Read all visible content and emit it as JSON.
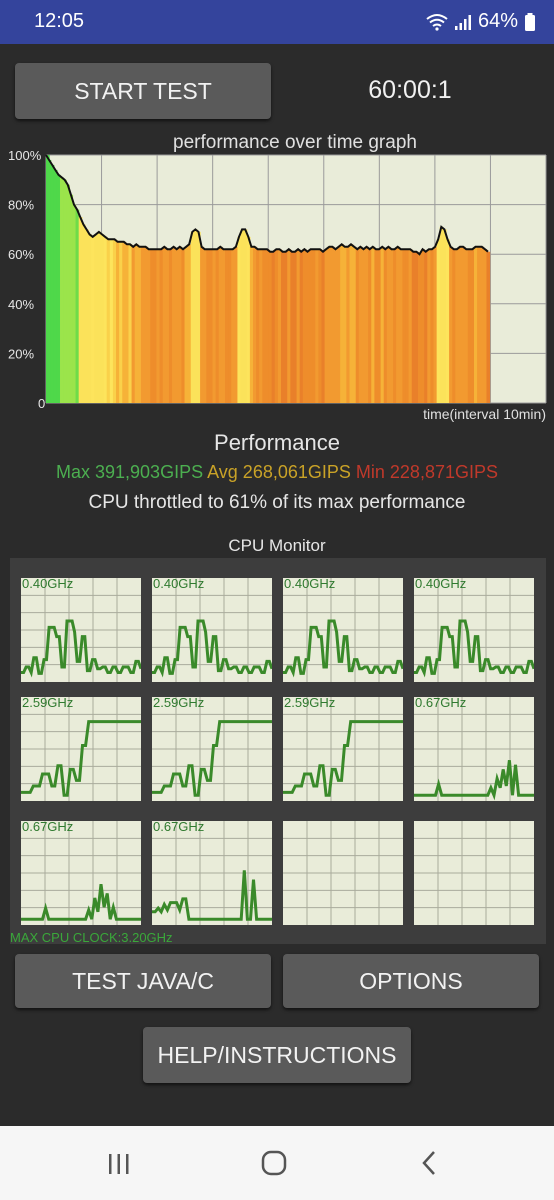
{
  "status": {
    "time": "12:05",
    "battery": "64%"
  },
  "controls": {
    "start_label": "START TEST",
    "timer": "60:00:1",
    "java_c_label": "TEST JAVA/C",
    "options_label": "OPTIONS",
    "help_label": "HELP/INSTRUCTIONS"
  },
  "chart_data": {
    "type": "line",
    "title": "performance over time graph",
    "xlabel": "time(interval 10min)",
    "ylabel": "",
    "ylim": [
      0,
      100
    ],
    "y_ticks": [
      "100%",
      "80%",
      "60%",
      "40%",
      "20%",
      "0"
    ],
    "grid": true,
    "series": [
      {
        "values": [
          100,
          98,
          96,
          94,
          92,
          91,
          90,
          88,
          84,
          80,
          78,
          75,
          72,
          70,
          68,
          67,
          68,
          69,
          68,
          67,
          66,
          66,
          66,
          65,
          65,
          65,
          64,
          64,
          63,
          64,
          63,
          63,
          63,
          62,
          62,
          62,
          62,
          62,
          63,
          62,
          62,
          63,
          62,
          63,
          62,
          63,
          64,
          69,
          70,
          69,
          63,
          62,
          62,
          62,
          62,
          62,
          63,
          62,
          62,
          62,
          62,
          63,
          67,
          70,
          70,
          67,
          63,
          63,
          62,
          62,
          62,
          62,
          61,
          61,
          62,
          62,
          61,
          61,
          62,
          61,
          61,
          62,
          61,
          62,
          61,
          62,
          62,
          62,
          62,
          61,
          62,
          63,
          63,
          62,
          63,
          64,
          63,
          63,
          64,
          63,
          62,
          63,
          62,
          63,
          62,
          63,
          62,
          62,
          63,
          62,
          63,
          62,
          62,
          63,
          62,
          62,
          62,
          62,
          61,
          61,
          60,
          62,
          61,
          62,
          62,
          63,
          66,
          71,
          70,
          66,
          63,
          62,
          62,
          63,
          63,
          62,
          62,
          62,
          63,
          63,
          63,
          62,
          61
        ]
      }
    ]
  },
  "summary": {
    "heading": "Performance",
    "max": "Max 391,903GIPS",
    "avg": "Avg 268,061GIPS",
    "min": "Min 228,871GIPS",
    "throttle": "CPU throttled to 61% of its max performance",
    "colors": {
      "max": "#4caf50",
      "avg": "#c9a227",
      "min": "#c0392b"
    }
  },
  "cpu_monitor": {
    "title": "CPU Monitor",
    "max_clock": "MAX CPU CLOCK:3.20GHz",
    "cores": [
      {
        "freq": "0.40GHz",
        "values": [
          0.06,
          0.06,
          0.12,
          0.12,
          0.06,
          0.22,
          0.22,
          0.05,
          0.05,
          0.2,
          0.2,
          0.55,
          0.55,
          0.55,
          0.45,
          0.45,
          0.12,
          0.12,
          0.62,
          0.62,
          0.62,
          0.5,
          0.18,
          0.18,
          0.45,
          0.45,
          0.08,
          0.08,
          0.2,
          0.2,
          0.1,
          0.1,
          0.12,
          0.12,
          0.06,
          0.06,
          0.12,
          0.12,
          0.06,
          0.06,
          0.12,
          0.12,
          0.12,
          0.06,
          0.06,
          0.18,
          0.18,
          0.1
        ]
      },
      {
        "freq": "0.40GHz",
        "values": [
          0.06,
          0.06,
          0.12,
          0.12,
          0.06,
          0.22,
          0.22,
          0.05,
          0.05,
          0.2,
          0.2,
          0.55,
          0.55,
          0.55,
          0.45,
          0.45,
          0.12,
          0.12,
          0.62,
          0.62,
          0.62,
          0.5,
          0.18,
          0.18,
          0.45,
          0.45,
          0.08,
          0.08,
          0.2,
          0.2,
          0.1,
          0.1,
          0.12,
          0.12,
          0.06,
          0.06,
          0.12,
          0.12,
          0.06,
          0.06,
          0.12,
          0.12,
          0.12,
          0.06,
          0.06,
          0.18,
          0.18,
          0.1
        ]
      },
      {
        "freq": "0.40GHz",
        "values": [
          0.06,
          0.06,
          0.12,
          0.12,
          0.06,
          0.22,
          0.22,
          0.05,
          0.05,
          0.2,
          0.2,
          0.55,
          0.55,
          0.55,
          0.45,
          0.45,
          0.12,
          0.12,
          0.62,
          0.62,
          0.62,
          0.5,
          0.18,
          0.18,
          0.45,
          0.45,
          0.08,
          0.08,
          0.2,
          0.2,
          0.1,
          0.1,
          0.12,
          0.12,
          0.06,
          0.06,
          0.12,
          0.12,
          0.06,
          0.06,
          0.12,
          0.12,
          0.12,
          0.06,
          0.06,
          0.18,
          0.18,
          0.1
        ]
      },
      {
        "freq": "0.40GHz",
        "values": [
          0.06,
          0.06,
          0.12,
          0.12,
          0.06,
          0.22,
          0.22,
          0.05,
          0.05,
          0.2,
          0.2,
          0.55,
          0.55,
          0.55,
          0.45,
          0.45,
          0.12,
          0.12,
          0.62,
          0.62,
          0.62,
          0.5,
          0.18,
          0.18,
          0.45,
          0.45,
          0.08,
          0.08,
          0.2,
          0.2,
          0.1,
          0.1,
          0.12,
          0.12,
          0.06,
          0.06,
          0.12,
          0.12,
          0.06,
          0.06,
          0.12,
          0.12,
          0.12,
          0.06,
          0.06,
          0.18,
          0.18,
          0.1
        ]
      },
      {
        "freq": "2.59GHz",
        "values": [
          0.05,
          0.05,
          0.05,
          0.05,
          0.12,
          0.12,
          0.12,
          0.25,
          0.25,
          0.25,
          0.12,
          0.12,
          0.34,
          0.34,
          0.02,
          0.02,
          0.3,
          0.3,
          0.18,
          0.18,
          0.56,
          0.56,
          0.82,
          0.82,
          0.82,
          0.82,
          0.82,
          0.82,
          0.82,
          0.82,
          0.82,
          0.82,
          0.82,
          0.82,
          0.82,
          0.82,
          0.82,
          0.82,
          0.82,
          0.82
        ]
      },
      {
        "freq": "2.59GHz",
        "values": [
          0.05,
          0.05,
          0.05,
          0.05,
          0.12,
          0.12,
          0.12,
          0.25,
          0.25,
          0.25,
          0.12,
          0.12,
          0.34,
          0.34,
          0.02,
          0.02,
          0.3,
          0.3,
          0.18,
          0.18,
          0.56,
          0.56,
          0.82,
          0.82,
          0.82,
          0.82,
          0.82,
          0.82,
          0.82,
          0.82,
          0.82,
          0.82,
          0.82,
          0.82,
          0.82,
          0.82,
          0.82,
          0.82,
          0.82,
          0.82
        ]
      },
      {
        "freq": "2.59GHz",
        "values": [
          0.05,
          0.05,
          0.05,
          0.05,
          0.12,
          0.12,
          0.12,
          0.25,
          0.25,
          0.25,
          0.12,
          0.12,
          0.34,
          0.34,
          0.02,
          0.02,
          0.3,
          0.3,
          0.18,
          0.18,
          0.56,
          0.56,
          0.82,
          0.82,
          0.82,
          0.82,
          0.82,
          0.82,
          0.82,
          0.82,
          0.82,
          0.82,
          0.82,
          0.82,
          0.82,
          0.82,
          0.82,
          0.82,
          0.82,
          0.82
        ]
      },
      {
        "freq": "0.67GHz",
        "values": [
          0.02,
          0.02,
          0.02,
          0.02,
          0.02,
          0.02,
          0.02,
          0.02,
          0.14,
          0.02,
          0.02,
          0.02,
          0.02,
          0.02,
          0.02,
          0.02,
          0.02,
          0.02,
          0.02,
          0.02,
          0.02,
          0.02,
          0.02,
          0.02,
          0.02,
          0.1,
          0.02,
          0.2,
          0.1,
          0.3,
          0.12,
          0.4,
          0.02,
          0.35,
          0.02,
          0.02,
          0.02,
          0.02,
          0.02,
          0.02
        ]
      },
      {
        "freq": "0.67GHz",
        "values": [
          0.02,
          0.02,
          0.02,
          0.02,
          0.02,
          0.02,
          0.02,
          0.02,
          0.14,
          0.02,
          0.02,
          0.02,
          0.02,
          0.02,
          0.02,
          0.02,
          0.02,
          0.02,
          0.02,
          0.02,
          0.02,
          0.02,
          0.12,
          0.02,
          0.25,
          0.1,
          0.4,
          0.15,
          0.3,
          0.02,
          0.15,
          0.02,
          0.02,
          0.02,
          0.02,
          0.02,
          0.02,
          0.02,
          0.02,
          0.02
        ]
      },
      {
        "freq": "0.67GHz",
        "values": [
          0.1,
          0.1,
          0.14,
          0.1,
          0.18,
          0.12,
          0.2,
          0.2,
          0.2,
          0.12,
          0.24,
          0.24,
          0.02,
          0.02,
          0.02,
          0.02,
          0.02,
          0.02,
          0.02,
          0.02,
          0.02,
          0.02,
          0.02,
          0.02,
          0.02,
          0.02,
          0.02,
          0.02,
          0.02,
          0.02,
          0.55,
          0.02,
          0.02,
          0.45,
          0.02,
          0.02,
          0.02,
          0.02,
          0.02,
          0.02
        ]
      },
      {
        "freq": "",
        "values": []
      },
      {
        "freq": "",
        "values": []
      }
    ]
  },
  "navigation": {
    "recents_icon": "recent-apps-icon",
    "home_icon": "home-icon",
    "back_icon": "back-icon"
  }
}
